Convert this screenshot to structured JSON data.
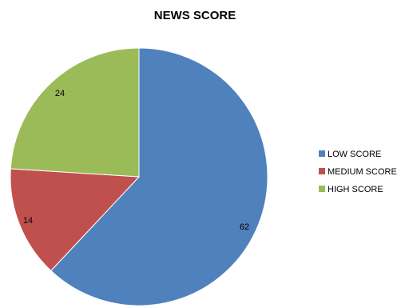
{
  "chart_data": {
    "type": "pie",
    "title": "NEWS SCORE",
    "categories": [
      "LOW SCORE",
      "MEDIUM SCORE",
      "HIGH SCORE"
    ],
    "values": [
      62,
      14,
      24
    ],
    "colors": [
      "#4F81BD",
      "#C0504D",
      "#9BBB59"
    ],
    "data_labels": [
      "62",
      "14",
      "24"
    ],
    "legend_position": "right",
    "start_angle": "12 o'clock",
    "direction": "clockwise"
  }
}
